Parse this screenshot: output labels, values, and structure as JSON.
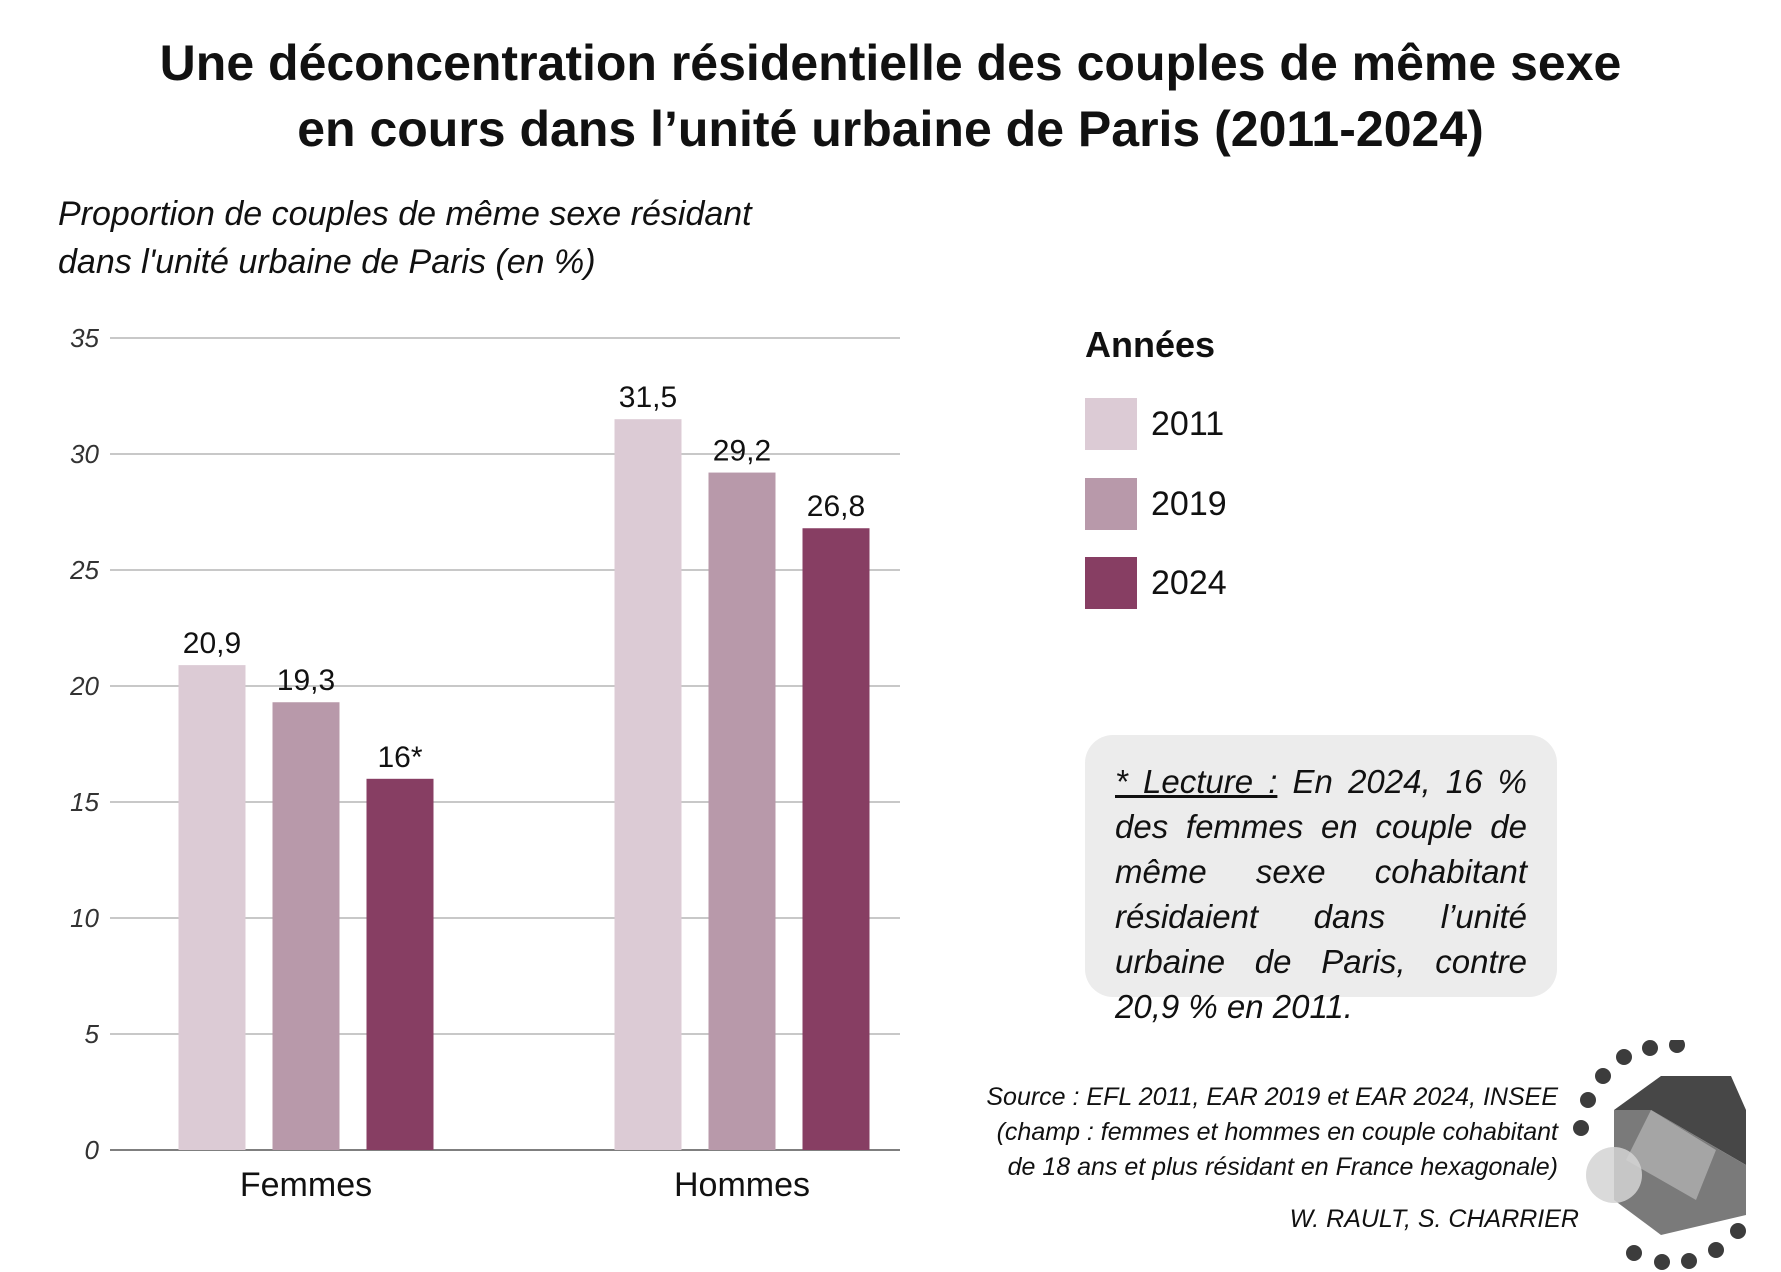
{
  "title_line1": "Une déconcentration résidentielle des couples de même sexe",
  "title_line2": "en cours dans l’unité urbaine de Paris (2011-2024)",
  "chart_data": {
    "type": "bar",
    "title": "Une déconcentration résidentielle des couples de même sexe en cours dans l’unité urbaine de Paris (2011-2024)",
    "ylabel_line1": "Proportion de couples de même sexe résidant",
    "ylabel_line2": "dans l'unité urbaine de Paris (en %)",
    "categories": [
      "Femmes",
      "Hommes"
    ],
    "series": [
      {
        "name": "2011",
        "color": "#dccbd5",
        "values": [
          20.9,
          31.5
        ],
        "labels": [
          "20,9",
          "31,5"
        ]
      },
      {
        "name": "2019",
        "color": "#b899aa",
        "values": [
          19.3,
          29.2
        ],
        "labels": [
          "19,3",
          "29,2"
        ]
      },
      {
        "name": "2024",
        "color": "#873e63",
        "values": [
          16,
          26.8
        ],
        "labels": [
          "16*",
          "26,8"
        ]
      }
    ],
    "ylim": [
      0,
      35
    ],
    "yticks": [
      0,
      5,
      10,
      15,
      20,
      25,
      30,
      35
    ],
    "grid": true,
    "legend_title": "Années",
    "legend_position": "right"
  },
  "note": {
    "lead": "* Lecture :",
    "text": "En 2024, 16 % des femmes en couple de même sexe cohabitant résidaient dans l’unité urbaine de Paris, contre 20,9 % en 2011."
  },
  "source": {
    "line1": "Source : EFL 2011, EAR 2019 et EAR 2024, INSEE",
    "line2": "(champ : femmes et hommes en couple cohabitant",
    "line3": "de 18 ans et plus résidant en France hexagonale)"
  },
  "author": "W. RAULT, S. CHARRIER"
}
